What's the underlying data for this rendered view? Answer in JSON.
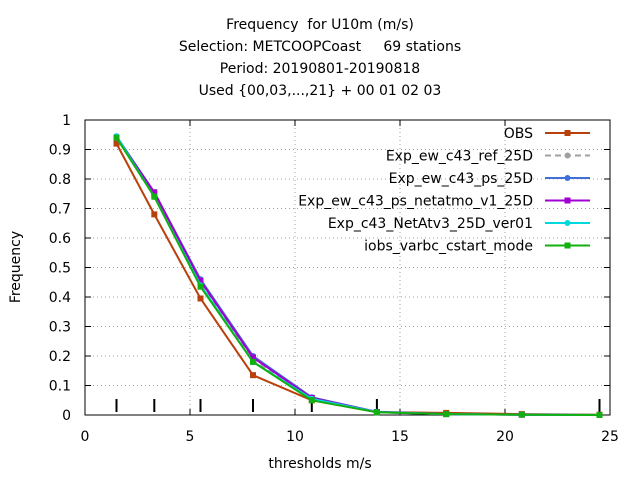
{
  "chart_data": {
    "type": "line",
    "title_lines": [
      "Frequency  for U10m (m/s)",
      "Selection: METCOOPCoast     69 stations",
      "Period: 20190801-20190818",
      "Used {00,03,...,21} + 00 01 02 03"
    ],
    "xlabel": "thresholds m/s",
    "ylabel": "Frequency",
    "xlim": [
      0,
      25
    ],
    "ylim": [
      0,
      1
    ],
    "xticks": [
      0,
      5,
      10,
      15,
      20,
      25
    ],
    "yticks": [
      0,
      0.1,
      0.2,
      0.3,
      0.4,
      0.5,
      0.6,
      0.7,
      0.8,
      0.9,
      1
    ],
    "grid": "dotted, vertical at x ticks, horizontal at y ticks",
    "legend_position": "top-right",
    "threshold_markers": [
      1.5,
      3.3,
      5.5,
      8,
      10.8,
      13.9,
      24.5
    ],
    "series": [
      {
        "name": "OBS",
        "color": "#b8400a",
        "dash": "solid",
        "marker": "square",
        "x": [
          1.5,
          3.3,
          5.5,
          8,
          10.8,
          13.9,
          17.2,
          20.8,
          24.5
        ],
        "y": [
          0.92,
          0.68,
          0.395,
          0.135,
          0.05,
          0.01,
          0.007,
          0.003,
          0.001
        ]
      },
      {
        "name": "Exp_ew_c43_ref_25D",
        "color": "#a0a0a0",
        "dash": "dashed",
        "marker": "circle",
        "x": [
          1.5,
          3.3,
          5.5,
          8,
          10.8,
          13.9,
          17.2,
          20.8,
          24.5
        ],
        "y": [
          0.94,
          0.745,
          0.45,
          0.185,
          0.057,
          0.01,
          0.003,
          0.001,
          0.0
        ]
      },
      {
        "name": "Exp_ew_c43_ps_25D",
        "color": "#3f6fd8",
        "dash": "solid",
        "marker": "circle",
        "x": [
          1.5,
          3.3,
          5.5,
          8,
          10.8,
          13.9,
          17.2,
          20.8,
          24.5
        ],
        "y": [
          0.945,
          0.755,
          0.46,
          0.2,
          0.06,
          0.011,
          0.003,
          0.001,
          0.0
        ]
      },
      {
        "name": "Exp_ew_c43_ps_netatmo_v1_25D",
        "color": "#a000d0",
        "dash": "solid",
        "marker": "square",
        "x": [
          1.5,
          3.3,
          5.5,
          8,
          10.8,
          13.9,
          17.2,
          20.8,
          24.5
        ],
        "y": [
          0.94,
          0.755,
          0.455,
          0.195,
          0.058,
          0.01,
          0.003,
          0.001,
          0.0
        ]
      },
      {
        "name": "Exp_c43_NetAtv3_25D_ver01",
        "color": "#00d8e0",
        "dash": "solid",
        "marker": "circle",
        "x": [
          1.5,
          3.3,
          5.5,
          8,
          10.8,
          13.9,
          17.2,
          20.8,
          24.5
        ],
        "y": [
          0.945,
          0.74,
          0.44,
          0.18,
          0.055,
          0.01,
          0.003,
          0.001,
          0.0
        ]
      },
      {
        "name": "iobs_varbc_cstart_mode",
        "color": "#10b010",
        "dash": "solid",
        "marker": "square",
        "x": [
          1.5,
          3.3,
          5.5,
          8,
          10.8,
          13.9,
          17.2,
          20.8,
          24.5
        ],
        "y": [
          0.94,
          0.74,
          0.435,
          0.18,
          0.05,
          0.009,
          0.003,
          0.001,
          0.0
        ]
      }
    ]
  }
}
